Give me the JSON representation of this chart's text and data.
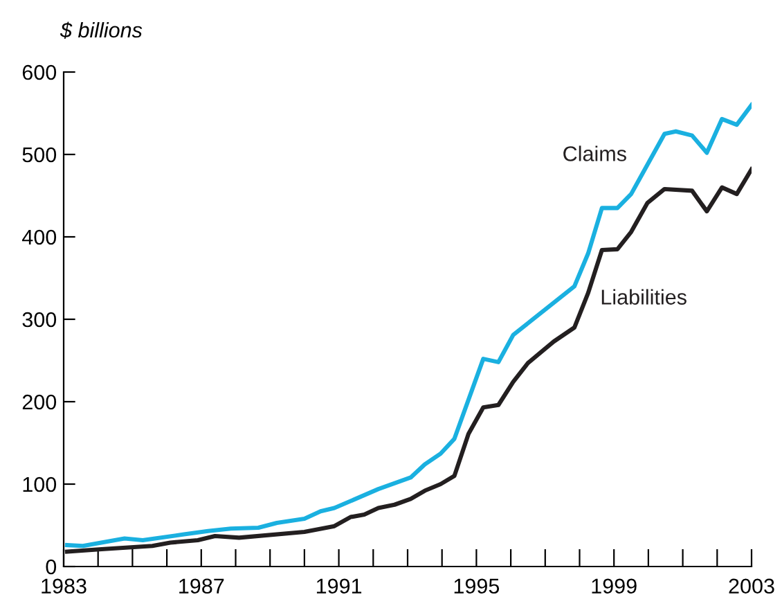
{
  "chart_data": {
    "type": "line",
    "ylabel": "$ billions",
    "xlim": [
      1983,
      2003
    ],
    "ylim": [
      0,
      600
    ],
    "xticks": [
      1983,
      {
        "value": 1984,
        "label": null
      },
      {
        "value": 1985,
        "label": null
      },
      {
        "value": 1986,
        "label": null
      },
      1987,
      {
        "value": 1988,
        "label": null
      },
      {
        "value": 1989,
        "label": null
      },
      {
        "value": 1990,
        "label": null
      },
      1991,
      {
        "value": 1992,
        "label": null
      },
      {
        "value": 1993,
        "label": null
      },
      {
        "value": 1994,
        "label": null
      },
      1995,
      {
        "value": 1996,
        "label": null
      },
      {
        "value": 1997,
        "label": null
      },
      {
        "value": 1998,
        "label": null
      },
      1999,
      {
        "value": 2000,
        "label": null
      },
      {
        "value": 2001,
        "label": null
      },
      {
        "value": 2002,
        "label": null
      },
      2003
    ],
    "yticks": [
      0,
      100,
      200,
      300,
      400,
      500,
      600
    ],
    "grid": false,
    "legend": false,
    "marker": "none",
    "line_style": "solid",
    "series": [
      {
        "name": "Claims",
        "color": "#1ab0e0",
        "x": [
          1983.1,
          1983.56,
          1984.77,
          1985.3,
          1986.5,
          1987.2,
          1987.86,
          1988.66,
          1989.2,
          1990.0,
          1990.47,
          1990.87,
          1992.15,
          1993.09,
          1993.5,
          1993.96,
          1994.36,
          1995.2,
          1995.64,
          1996.07,
          1997.85,
          1998.25,
          1998.65,
          1999.1,
          1999.5,
          2000.47,
          2000.8,
          2001.27,
          2001.7,
          2002.14,
          2002.57,
          2003.0
        ],
        "values": [
          26,
          25,
          34,
          32,
          39,
          43,
          46,
          47,
          53,
          58,
          67,
          71,
          94,
          108,
          124,
          137,
          155,
          252,
          248,
          281,
          340,
          380,
          435,
          435,
          452,
          525,
          528,
          523,
          502,
          543,
          536,
          560
        ]
      },
      {
        "name": "Liabilities",
        "color": "#231f20",
        "x": [
          1983.1,
          1984.1,
          1985.58,
          1986.1,
          1986.9,
          1987.4,
          1988.1,
          1990.0,
          1990.87,
          1991.34,
          1991.74,
          1992.15,
          1992.62,
          1993.09,
          1993.5,
          1993.96,
          1994.36,
          1994.77,
          1995.2,
          1995.64,
          1996.07,
          1996.5,
          1997.25,
          1997.85,
          1998.25,
          1998.65,
          1999.1,
          1999.5,
          1999.97,
          2000.47,
          2001.27,
          2001.7,
          2002.14,
          2002.57,
          2003.0
        ],
        "values": [
          18,
          21,
          25,
          29,
          32,
          37,
          35,
          42,
          49,
          60,
          63,
          71,
          75,
          82,
          92,
          100,
          110,
          161,
          193,
          196,
          224,
          247,
          273,
          290,
          332,
          384,
          385,
          406,
          441,
          458,
          456,
          431,
          460,
          452,
          482
        ]
      }
    ]
  }
}
